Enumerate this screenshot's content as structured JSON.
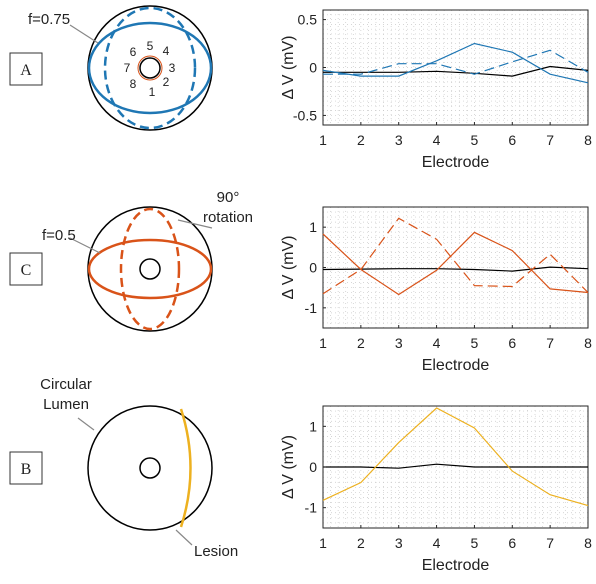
{
  "colors": {
    "blue": "#1f77b4",
    "orange": "#d95319",
    "yellow": "#edb120",
    "black": "#000000",
    "grid": "#c8c8c8"
  },
  "panels": [
    {
      "label": "A",
      "diagram": {
        "f_label": "f=0.75",
        "electrode_numbers": [
          "1",
          "2",
          "3",
          "4",
          "5",
          "6",
          "7",
          "8"
        ]
      }
    },
    {
      "label": "C",
      "diagram": {
        "f_label": "f=0.5",
        "rotation_label_line1": "90°",
        "rotation_label_line2": "rotation"
      }
    },
    {
      "label": "B",
      "diagram": {
        "lumen_label_line1": "Circular",
        "lumen_label_line2": "Lumen",
        "lesion_label": "Lesion"
      }
    }
  ],
  "chart_data": [
    {
      "type": "line",
      "xlabel": "Electrode",
      "ylabel": "Δ V (mV)",
      "x": [
        1,
        2,
        3,
        4,
        5,
        6,
        7,
        8
      ],
      "xlim": [
        1,
        8
      ],
      "ylim": [
        -0.6,
        0.6
      ],
      "yticks": [
        -0.5,
        0,
        0.5
      ],
      "ytick_labels": [
        "-0.5",
        "0",
        "0.5"
      ],
      "grid": true,
      "series": [
        {
          "values": [
            -0.05,
            -0.05,
            -0.05,
            -0.04,
            -0.06,
            -0.09,
            0.01,
            -0.03
          ],
          "color": "#000000",
          "style": "solid"
        },
        {
          "values": [
            -0.03,
            -0.09,
            -0.09,
            0.07,
            0.25,
            0.16,
            -0.07,
            -0.16
          ],
          "color": "#1f77b4",
          "style": "solid"
        },
        {
          "values": [
            -0.07,
            -0.07,
            0.04,
            0.04,
            -0.07,
            0.06,
            0.18,
            -0.05
          ],
          "color": "#1f77b4",
          "style": "dashed"
        }
      ]
    },
    {
      "type": "line",
      "xlabel": "Electrode",
      "ylabel": "Δ V (mV)",
      "x": [
        1,
        2,
        3,
        4,
        5,
        6,
        7,
        8
      ],
      "xlim": [
        1,
        8
      ],
      "ylim": [
        -1.5,
        1.5
      ],
      "yticks": [
        -1,
        0,
        1
      ],
      "ytick_labels": [
        "-1",
        "0",
        "1"
      ],
      "grid": true,
      "series": [
        {
          "values": [
            -0.05,
            -0.04,
            -0.03,
            -0.03,
            -0.05,
            -0.09,
            0.01,
            -0.03
          ],
          "color": "#000000",
          "style": "solid"
        },
        {
          "values": [
            0.83,
            -0.05,
            -0.67,
            -0.07,
            0.87,
            0.42,
            -0.53,
            -0.62
          ],
          "color": "#d95319",
          "style": "solid"
        },
        {
          "values": [
            -0.65,
            -0.05,
            1.22,
            0.7,
            -0.45,
            -0.47,
            0.33,
            -0.62
          ],
          "color": "#d95319",
          "style": "dashed"
        }
      ]
    },
    {
      "type": "line",
      "xlabel": "Electrode",
      "ylabel": "Δ V (mV)",
      "x": [
        1,
        2,
        3,
        4,
        5,
        6,
        7,
        8
      ],
      "xlim": [
        1,
        8
      ],
      "ylim": [
        -1.5,
        1.5
      ],
      "yticks": [
        -1,
        0,
        1
      ],
      "ytick_labels": [
        "-1",
        "0",
        "1"
      ],
      "grid": true,
      "series": [
        {
          "values": [
            0.0,
            0.0,
            -0.03,
            0.07,
            0.0,
            0.0,
            0.0,
            0.0
          ],
          "color": "#000000",
          "style": "solid"
        },
        {
          "values": [
            -0.82,
            -0.38,
            0.6,
            1.45,
            0.96,
            -0.1,
            -0.68,
            -0.95
          ],
          "color": "#edb120",
          "style": "solid"
        }
      ]
    }
  ]
}
